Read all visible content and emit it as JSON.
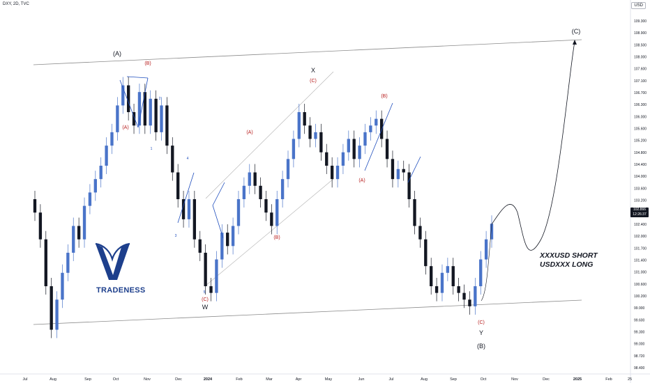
{
  "header": {
    "symbol_info": "DXY, 2D, TVC",
    "currency": "USD"
  },
  "logo": {
    "text": "TRADENESS",
    "color": "#1d3f8c"
  },
  "callout": {
    "line1": "XXXUSD SHORT",
    "line2": "USDXXX LONG"
  },
  "price_tag": {
    "price": "102.866",
    "countdown": "12:26:37"
  },
  "colors": {
    "up": "#4a74c9",
    "down": "#131722",
    "wave_labels_red": "#b71c1c",
    "wave_labels_blue": "#1e4dbd",
    "channel": "#9e9e9e"
  },
  "chart_data": {
    "type": "candlestick",
    "title": "",
    "ylim": [
      98.4,
      109.3
    ],
    "y_ticks": [
      "109.300",
      "108.900",
      "108.500",
      "108.000",
      "107.600",
      "107.100",
      "106.700",
      "106.300",
      "106.000",
      "105.600",
      "105.200",
      "104.800",
      "104.400",
      "104.000",
      "103.600",
      "103.200",
      "102.800",
      "102.400",
      "102.000",
      "101.700",
      "101.400",
      "101.000",
      "100.600",
      "100.200",
      "99.900",
      "99.600",
      "99.300",
      "99.000",
      "98.720",
      "98.400"
    ],
    "x_ticks": [
      "Jul",
      "Aug",
      "Sep",
      "Oct",
      "Nov",
      "Dec",
      "2024",
      "Feb",
      "Mar",
      "Apr",
      "May",
      "Jun",
      "Jul",
      "Aug",
      "Sep",
      "Oct",
      "Nov",
      "Dec",
      "2025",
      "Feb",
      "25"
    ],
    "candles_approx": [
      [
        103.6,
        103.2
      ],
      [
        103.2,
        102.4
      ],
      [
        102.4,
        101.0
      ],
      [
        101.0,
        99.7
      ],
      [
        99.7,
        100.6
      ],
      [
        100.6,
        101.4
      ],
      [
        101.4,
        102.0
      ],
      [
        102.0,
        102.8
      ],
      [
        102.8,
        102.4
      ],
      [
        102.4,
        103.4
      ],
      [
        103.4,
        103.8
      ],
      [
        103.8,
        104.2
      ],
      [
        104.2,
        104.6
      ],
      [
        104.6,
        105.2
      ],
      [
        105.2,
        105.6
      ],
      [
        105.6,
        106.4
      ],
      [
        106.4,
        107.0
      ],
      [
        107.0,
        106.2
      ],
      [
        106.2,
        105.8
      ],
      [
        105.8,
        106.8
      ],
      [
        106.8,
        105.8
      ],
      [
        105.8,
        106.6
      ],
      [
        106.6,
        105.6
      ],
      [
        105.6,
        106.4
      ],
      [
        106.4,
        105.2
      ],
      [
        105.2,
        104.4
      ],
      [
        104.4,
        103.6
      ],
      [
        103.6,
        103.0
      ],
      [
        103.0,
        103.6
      ],
      [
        103.6,
        102.4
      ],
      [
        102.4,
        102.0
      ],
      [
        102.0,
        101.0
      ],
      [
        101.0,
        100.8
      ],
      [
        100.8,
        101.8
      ],
      [
        101.8,
        102.6
      ],
      [
        102.6,
        102.2
      ],
      [
        102.2,
        102.8
      ],
      [
        102.8,
        103.6
      ],
      [
        103.6,
        104.0
      ],
      [
        104.0,
        104.4
      ],
      [
        104.4,
        104.0
      ],
      [
        104.0,
        103.6
      ],
      [
        103.6,
        103.2
      ],
      [
        103.2,
        102.8
      ],
      [
        102.8,
        103.6
      ],
      [
        103.6,
        104.2
      ],
      [
        104.2,
        104.8
      ],
      [
        104.8,
        105.4
      ],
      [
        105.4,
        106.2
      ],
      [
        106.2,
        105.8
      ],
      [
        105.8,
        105.4
      ],
      [
        105.4,
        105.6
      ],
      [
        105.6,
        105.0
      ],
      [
        105.0,
        104.6
      ],
      [
        104.6,
        104.2
      ],
      [
        104.2,
        104.6
      ],
      [
        104.6,
        105.0
      ],
      [
        105.0,
        105.4
      ],
      [
        105.4,
        104.8
      ],
      [
        104.8,
        105.2
      ],
      [
        105.2,
        105.6
      ],
      [
        105.6,
        105.8
      ],
      [
        105.8,
        106.0
      ],
      [
        106.0,
        105.4
      ],
      [
        105.4,
        104.8
      ],
      [
        104.8,
        104.2
      ],
      [
        104.2,
        104.5
      ],
      [
        104.5,
        104.4
      ],
      [
        104.4,
        103.6
      ],
      [
        103.6,
        102.8
      ],
      [
        102.8,
        102.4
      ],
      [
        102.4,
        101.6
      ],
      [
        101.6,
        101.0
      ],
      [
        101.0,
        100.8
      ],
      [
        100.8,
        101.4
      ],
      [
        101.4,
        101.6
      ],
      [
        101.6,
        101.0
      ],
      [
        101.0,
        100.8
      ],
      [
        100.8,
        100.6
      ],
      [
        100.6,
        100.4
      ],
      [
        100.4,
        101.0
      ],
      [
        101.0,
        101.8
      ],
      [
        101.8,
        102.4
      ],
      [
        102.4,
        102.866
      ]
    ],
    "channel_lines": [
      {
        "name": "upper-channel",
        "from": [
          "Jul 2023",
          107.2
        ],
        "to": [
          "2025",
          108.1
        ]
      },
      {
        "name": "lower-channel",
        "from": [
          "Jul 2023",
          99.7
        ],
        "to": [
          "2025",
          100.2
        ]
      }
    ],
    "projection": {
      "from": 102.6,
      "peak_near": 103.1,
      "dip_near": 101.7,
      "target": 108.0
    },
    "wave_labels": [
      {
        "text": "(A)",
        "color": "#131722"
      },
      {
        "text": "(B)",
        "color": "#b71c1c"
      },
      {
        "text": "(A)",
        "color": "#b71c1c"
      },
      {
        "text": "X",
        "color": "#131722"
      },
      {
        "text": "(C)",
        "color": "#b71c1c"
      },
      {
        "text": "(A)",
        "color": "#b71c1c"
      },
      {
        "text": "(B)",
        "color": "#b71c1c"
      },
      {
        "text": "(A)",
        "color": "#b71c1c"
      },
      {
        "text": "(B)",
        "color": "#b71c1c"
      },
      {
        "text": "(C)",
        "color": "#b71c1c"
      },
      {
        "text": "W",
        "color": "#131722"
      },
      {
        "text": "(C)",
        "color": "#b71c1c"
      },
      {
        "text": "Y",
        "color": "#131722"
      },
      {
        "text": "(B)",
        "color": "#131722"
      },
      {
        "text": "(C)",
        "color": "#131722"
      },
      {
        "text": "1",
        "color": "#1e4dbd"
      },
      {
        "text": "2",
        "color": "#1e4dbd"
      },
      {
        "text": "3",
        "color": "#1e4dbd"
      },
      {
        "text": "4",
        "color": "#1e4dbd"
      },
      {
        "text": "5",
        "color": "#1e4dbd"
      }
    ]
  }
}
